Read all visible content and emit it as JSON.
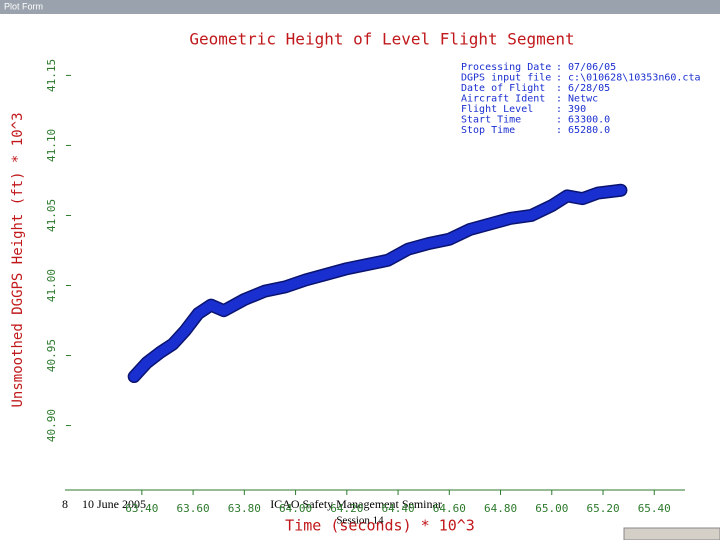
{
  "window_title": "Plot Form",
  "chart_data": {
    "type": "line",
    "title": "Geometric Height of Level Flight Segment",
    "y_label": "Unsmoothed DGGPS Height (ft) * 10^3",
    "x_label": "Time (seconds) * 10^3",
    "x": [
      63.37,
      63.42,
      63.47,
      63.52,
      63.57,
      63.62,
      63.67,
      63.72,
      63.8,
      63.88,
      63.96,
      64.04,
      64.12,
      64.2,
      64.28,
      64.36,
      64.44,
      64.52,
      64.6,
      64.68,
      64.76,
      64.84,
      64.92,
      65.0,
      65.06,
      65.12,
      65.18,
      65.27
    ],
    "series": [
      {
        "color": "#1a2fd0",
        "values": [
          40.935,
          40.945,
          40.952,
          40.958,
          40.968,
          40.98,
          40.986,
          40.982,
          40.99,
          40.996,
          40.999,
          41.004,
          41.008,
          41.012,
          41.015,
          41.018,
          41.026,
          41.03,
          41.033,
          41.04,
          41.044,
          41.048,
          41.05,
          41.057,
          41.064,
          41.062,
          41.066,
          41.068
        ]
      }
    ],
    "xlim": [
      63.1,
      65.52
    ],
    "ylim": [
      40.854,
      41.161
    ],
    "xticks": [
      {
        "value": 63.4,
        "label": "63.40"
      },
      {
        "value": 63.6,
        "label": "63.60"
      },
      {
        "value": 63.8,
        "label": "63.80"
      },
      {
        "value": 64.0,
        "label": "64.00"
      },
      {
        "value": 64.2,
        "label": "64.20"
      },
      {
        "value": 64.4,
        "label": "64.40"
      },
      {
        "value": 64.6,
        "label": "64.60"
      },
      {
        "value": 64.8,
        "label": "64.80"
      },
      {
        "value": 65.0,
        "label": "65.00"
      },
      {
        "value": 65.2,
        "label": "65.20"
      },
      {
        "value": 65.4,
        "label": "65.40"
      }
    ],
    "yticks": [
      {
        "value": 40.9,
        "label": "40.90"
      },
      40.95,
      {
        "value": 41.0,
        "label": "41.00"
      },
      41.05,
      {
        "value": 41.1,
        "label": "41.10"
      },
      41.15
    ],
    "info": [
      {
        "label": "Processing Date",
        "value": ": 07/06/05"
      },
      {
        "label": "DGPS input file",
        "value": ": c:\\010628\\10353n60.cta"
      },
      {
        "label": "Date of Flight",
        "value": ":  6/28/05"
      },
      {
        "label": "Aircraft Ident",
        "value": ": Netwc"
      },
      {
        "label": "Flight Level",
        "value": ": 390"
      },
      {
        "label": "Start Time",
        "value": ":  63300.0"
      },
      {
        "label": "Stop Time",
        "value": ":  65280.0"
      }
    ]
  },
  "footer": {
    "slide_number": "8",
    "date": "10 June 2005",
    "event": "ICAO Safety Management Seminar",
    "session": "Session 14"
  }
}
